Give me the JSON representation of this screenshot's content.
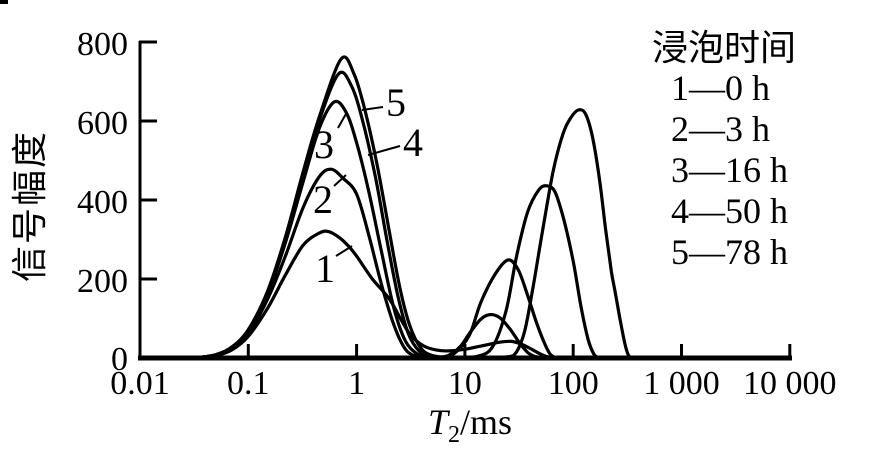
{
  "figure": {
    "background": "#ffffff",
    "ink_color": "#000000"
  },
  "chart_data": {
    "type": "line",
    "title": "",
    "x_axis": {
      "scale": "log",
      "range": [
        0.01,
        10000
      ],
      "label_symbol": "T",
      "label_sub": "2",
      "label_unit": "/ms",
      "ticks": [
        {
          "v": 0.01,
          "label": "0.01"
        },
        {
          "v": 0.1,
          "label": "0.1"
        },
        {
          "v": 1,
          "label": "1"
        },
        {
          "v": 10,
          "label": "10"
        },
        {
          "v": 100,
          "label": "100"
        },
        {
          "v": 1000,
          "label": "1 000"
        },
        {
          "v": 10000,
          "label": "10 000"
        }
      ]
    },
    "y_axis": {
      "label": "信号幅度",
      "range": [
        0,
        800
      ],
      "ticks": [
        {
          "v": 0,
          "label": "0"
        },
        {
          "v": 200,
          "label": "200"
        },
        {
          "v": 400,
          "label": "400"
        },
        {
          "v": 600,
          "label": "600"
        },
        {
          "v": 800,
          "label": "800"
        }
      ]
    },
    "legend": {
      "title": "浸泡时间",
      "items": [
        {
          "curve": "1",
          "time": "0 h",
          "label": "1—0 h"
        },
        {
          "curve": "2",
          "time": "3 h",
          "label": "2—3 h"
        },
        {
          "curve": "3",
          "time": "16 h",
          "label": "3—16 h"
        },
        {
          "curve": "4",
          "time": "50 h",
          "label": "4—50 h"
        },
        {
          "curve": "5",
          "time": "78 h",
          "label": "5—78 h"
        }
      ]
    },
    "series": [
      {
        "name": "1",
        "soak_time": "0 h",
        "points": [
          [
            0.035,
            0
          ],
          [
            0.05,
            6
          ],
          [
            0.07,
            20
          ],
          [
            0.1,
            55
          ],
          [
            0.15,
            125
          ],
          [
            0.22,
            210
          ],
          [
            0.32,
            285
          ],
          [
            0.45,
            316
          ],
          [
            0.55,
            320
          ],
          [
            0.7,
            304
          ],
          [
            0.85,
            282
          ],
          [
            1.0,
            258
          ],
          [
            1.4,
            200
          ],
          [
            2.0,
            150
          ],
          [
            2.6,
            95
          ],
          [
            3.2,
            56
          ],
          [
            4.2,
            30
          ],
          [
            5.5,
            20
          ],
          [
            7,
            18
          ],
          [
            10,
            22
          ],
          [
            15,
            32
          ],
          [
            21,
            40
          ],
          [
            27,
            42
          ],
          [
            34,
            34
          ],
          [
            42,
            21
          ],
          [
            50,
            10
          ],
          [
            58,
            3
          ],
          [
            66,
            0
          ]
        ]
      },
      {
        "name": "2",
        "soak_time": "3 h",
        "points": [
          [
            0.035,
            0
          ],
          [
            0.05,
            7
          ],
          [
            0.07,
            24
          ],
          [
            0.1,
            62
          ],
          [
            0.15,
            148
          ],
          [
            0.22,
            258
          ],
          [
            0.32,
            380
          ],
          [
            0.45,
            458
          ],
          [
            0.58,
            478
          ],
          [
            0.75,
            455
          ],
          [
            1.0,
            415
          ],
          [
            1.3,
            310
          ],
          [
            1.7,
            185
          ],
          [
            2.2,
            85
          ],
          [
            2.7,
            30
          ],
          [
            3.2,
            9
          ],
          [
            4,
            2
          ],
          [
            5.5,
            2
          ],
          [
            7,
            6
          ],
          [
            9,
            28
          ],
          [
            11,
            62
          ],
          [
            14,
            98
          ],
          [
            17,
            110
          ],
          [
            21,
            102
          ],
          [
            26,
            74
          ],
          [
            32,
            38
          ],
          [
            38,
            14
          ],
          [
            44,
            4
          ],
          [
            50,
            0
          ]
        ]
      },
      {
        "name": "3",
        "soak_time": "16 h",
        "points": [
          [
            0.035,
            0
          ],
          [
            0.05,
            8
          ],
          [
            0.07,
            26
          ],
          [
            0.1,
            68
          ],
          [
            0.15,
            160
          ],
          [
            0.22,
            292
          ],
          [
            0.32,
            445
          ],
          [
            0.45,
            580
          ],
          [
            0.62,
            648
          ],
          [
            0.8,
            622
          ],
          [
            1.0,
            545
          ],
          [
            1.3,
            420
          ],
          [
            1.7,
            268
          ],
          [
            2.2,
            128
          ],
          [
            2.8,
            45
          ],
          [
            3.6,
            11
          ],
          [
            4.6,
            3
          ],
          [
            6,
            2
          ],
          [
            8,
            12
          ],
          [
            11,
            58
          ],
          [
            14,
            140
          ],
          [
            19,
            212
          ],
          [
            25,
            248
          ],
          [
            31,
            224
          ],
          [
            38,
            158
          ],
          [
            46,
            88
          ],
          [
            55,
            34
          ],
          [
            62,
            8
          ],
          [
            69,
            0
          ]
        ]
      },
      {
        "name": "4",
        "soak_time": "50 h",
        "points": [
          [
            0.035,
            0
          ],
          [
            0.05,
            8
          ],
          [
            0.07,
            27
          ],
          [
            0.1,
            70
          ],
          [
            0.15,
            165
          ],
          [
            0.22,
            300
          ],
          [
            0.32,
            462
          ],
          [
            0.45,
            600
          ],
          [
            0.68,
            719
          ],
          [
            0.9,
            688
          ],
          [
            1.15,
            595
          ],
          [
            1.5,
            455
          ],
          [
            1.9,
            300
          ],
          [
            2.4,
            158
          ],
          [
            3.0,
            62
          ],
          [
            3.8,
            17
          ],
          [
            4.8,
            4
          ],
          [
            6.5,
            1
          ],
          [
            9,
            1
          ],
          [
            13,
            4
          ],
          [
            18,
            28
          ],
          [
            24,
            120
          ],
          [
            30,
            258
          ],
          [
            38,
            370
          ],
          [
            48,
            425
          ],
          [
            57,
            436
          ],
          [
            68,
            420
          ],
          [
            82,
            350
          ],
          [
            100,
            245
          ],
          [
            118,
            130
          ],
          [
            138,
            45
          ],
          [
            155,
            10
          ],
          [
            168,
            0
          ]
        ]
      },
      {
        "name": "5",
        "soak_time": "78 h",
        "points": [
          [
            0.035,
            0
          ],
          [
            0.05,
            8
          ],
          [
            0.07,
            27
          ],
          [
            0.1,
            72
          ],
          [
            0.15,
            168
          ],
          [
            0.22,
            306
          ],
          [
            0.32,
            470
          ],
          [
            0.45,
            608
          ],
          [
            0.72,
            757
          ],
          [
            0.95,
            718
          ],
          [
            1.2,
            625
          ],
          [
            1.55,
            488
          ],
          [
            2.0,
            322
          ],
          [
            2.5,
            180
          ],
          [
            3.1,
            82
          ],
          [
            3.9,
            26
          ],
          [
            4.9,
            7
          ],
          [
            7,
            1
          ],
          [
            12,
            0
          ],
          [
            20,
            1
          ],
          [
            28,
            6
          ],
          [
            35,
            60
          ],
          [
            42,
            170
          ],
          [
            52,
            320
          ],
          [
            65,
            470
          ],
          [
            80,
            565
          ],
          [
            95,
            608
          ],
          [
            112,
            628
          ],
          [
            130,
            618
          ],
          [
            150,
            562
          ],
          [
            175,
            452
          ],
          [
            200,
            322
          ],
          [
            225,
            220
          ],
          [
            245,
            165
          ],
          [
            270,
            100
          ],
          [
            300,
            36
          ],
          [
            320,
            10
          ],
          [
            335,
            0
          ]
        ]
      }
    ],
    "annotations": [
      {
        "text": "1",
        "x": 325,
        "y": 269,
        "leader": [
          [
            336,
            256
          ],
          [
            352,
            246
          ]
        ]
      },
      {
        "text": "2",
        "x": 323,
        "y": 200,
        "leader": [
          [
            334,
            186
          ],
          [
            346,
            175
          ]
        ]
      },
      {
        "text": "3",
        "x": 324,
        "y": 145,
        "leader": [
          [
            338,
            128
          ],
          [
            347,
            112
          ]
        ]
      },
      {
        "text": "4",
        "x": 413,
        "y": 143,
        "leader": [
          [
            400,
            146
          ],
          [
            368,
            155
          ]
        ]
      },
      {
        "text": "5",
        "x": 396,
        "y": 103,
        "leader": [
          [
            383,
            107
          ],
          [
            362,
            110
          ]
        ]
      }
    ]
  }
}
